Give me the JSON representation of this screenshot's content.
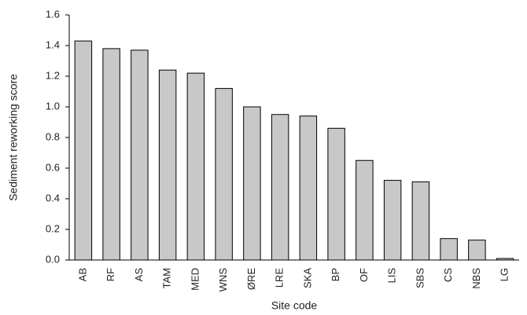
{
  "chart_data": {
    "type": "bar",
    "x_label": "Site code",
    "y_label": "Sediment reworking score",
    "categories": [
      "AB",
      "RF",
      "AS",
      "TAM",
      "MED",
      "WNS",
      "ØRE",
      "LRE",
      "SKA",
      "BP",
      "OF",
      "LIS",
      "SBS",
      "CS",
      "NBS",
      "LG"
    ],
    "values": [
      1.43,
      1.38,
      1.37,
      1.24,
      1.22,
      1.12,
      1.0,
      0.95,
      0.94,
      0.86,
      0.65,
      0.52,
      0.51,
      0.14,
      0.13,
      0.01
    ],
    "color": "#c8c8c8",
    "ylim": [
      0,
      1.6
    ],
    "yticks": [
      {
        "value": 0,
        "label": "0.0"
      },
      0.2,
      0.4,
      0.6,
      0.8,
      {
        "value": 1,
        "label": "1.0"
      },
      1.2,
      1.4,
      1.6
    ],
    "grid": false
  }
}
